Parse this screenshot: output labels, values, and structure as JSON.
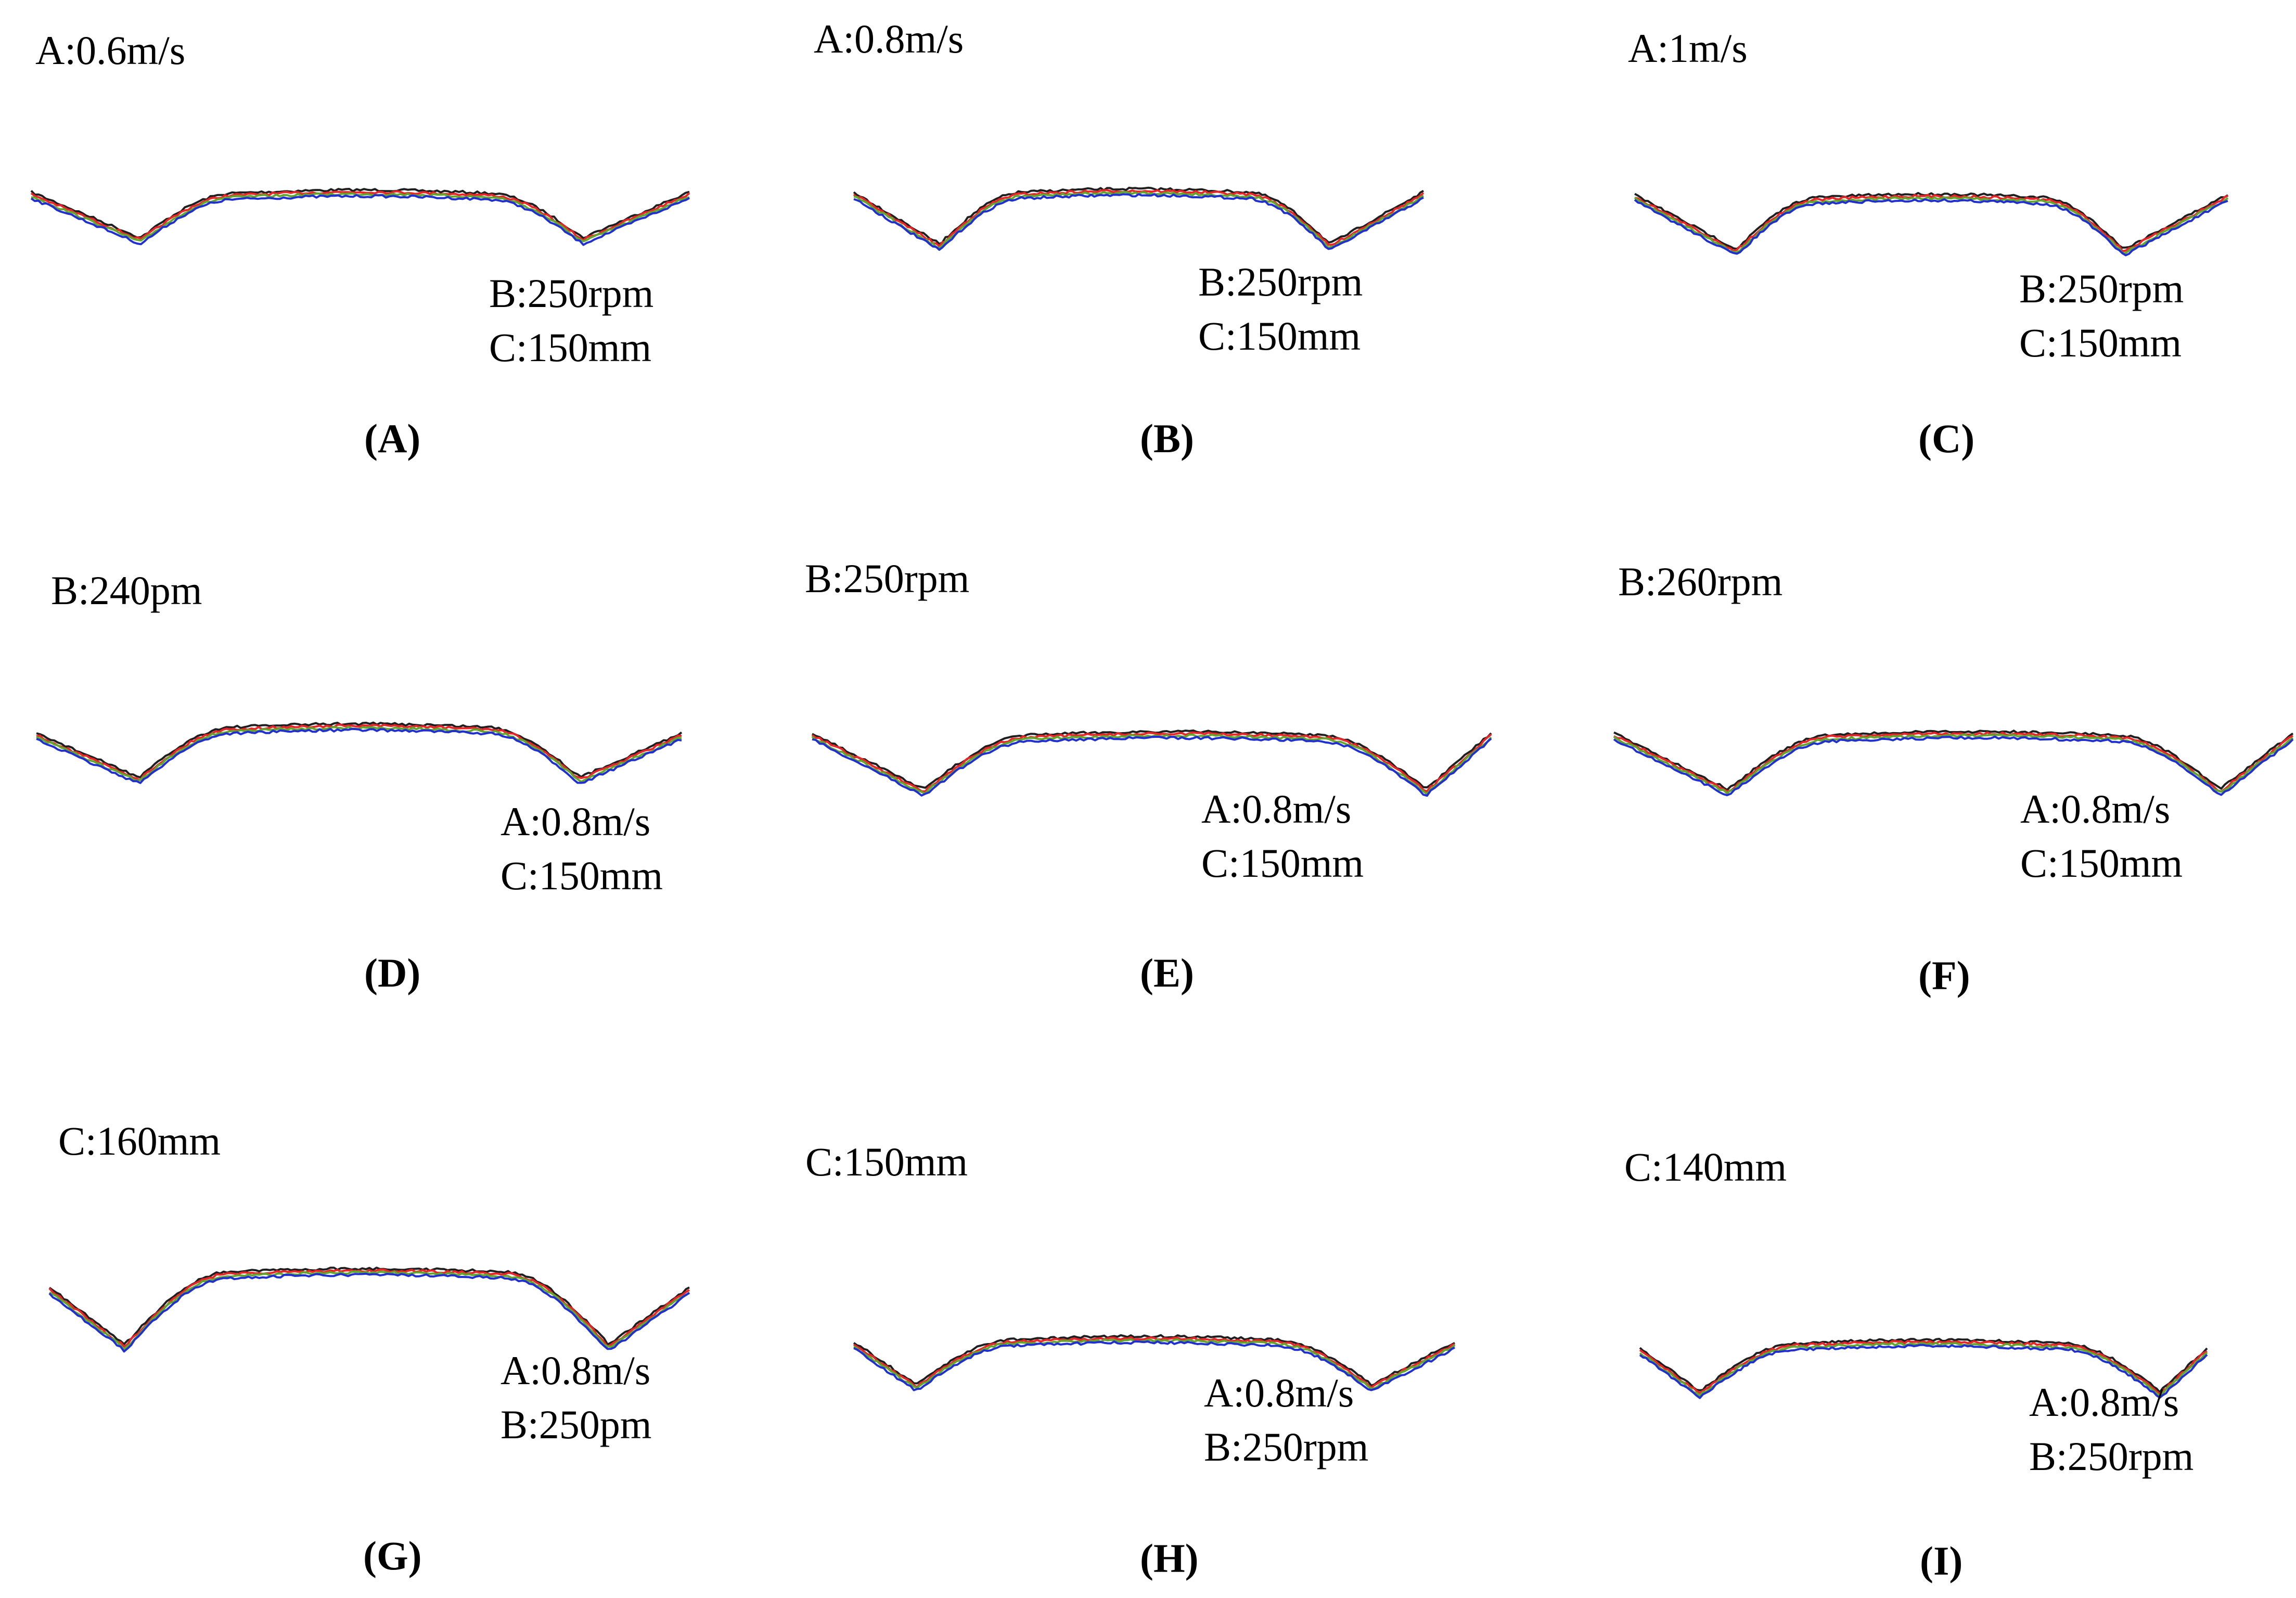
{
  "figure": {
    "line_colors": [
      "#1f1f1f",
      "#e8262a",
      "#63a52d",
      "#1f2fd0"
    ],
    "line_names": [
      "black",
      "red",
      "green",
      "blue"
    ]
  },
  "chart_data": [
    {
      "type": "line",
      "panel": "(A)",
      "varied_label": "A:0.6m/s",
      "fixed_labels": [
        "B:250rpm",
        "C:150mm"
      ]
    },
    {
      "type": "line",
      "panel": "(B)",
      "varied_label": "A:0.8m/s",
      "fixed_labels": [
        "B:250rpm",
        "C:150mm"
      ]
    },
    {
      "type": "line",
      "panel": "(C)",
      "varied_label": "A:1m/s",
      "fixed_labels": [
        "B:250rpm",
        "C:150mm"
      ]
    },
    {
      "type": "line",
      "panel": "(D)",
      "varied_label": "B:240pm",
      "fixed_labels": [
        "A:0.8m/s",
        "C:150mm"
      ]
    },
    {
      "type": "line",
      "panel": "(E)",
      "varied_label": "B:250rpm",
      "fixed_labels": [
        "A:0.8m/s",
        "C:150mm"
      ]
    },
    {
      "type": "line",
      "panel": "(F)",
      "varied_label": "B:260rpm",
      "fixed_labels": [
        "A:0.8m/s",
        "C:150mm"
      ]
    },
    {
      "type": "line",
      "panel": "(G)",
      "varied_label": "C:160mm",
      "fixed_labels": [
        "A:0.8m/s",
        "B:250pm"
      ]
    },
    {
      "type": "line",
      "panel": "(H)",
      "varied_label": "C:150mm",
      "fixed_labels": [
        "A:0.8m/s",
        "B:250rpm"
      ]
    },
    {
      "type": "line",
      "panel": "(I)",
      "varied_label": "C:140mm",
      "fixed_labels": [
        "A:0.8m/s",
        "B:250rpm"
      ]
    }
  ]
}
